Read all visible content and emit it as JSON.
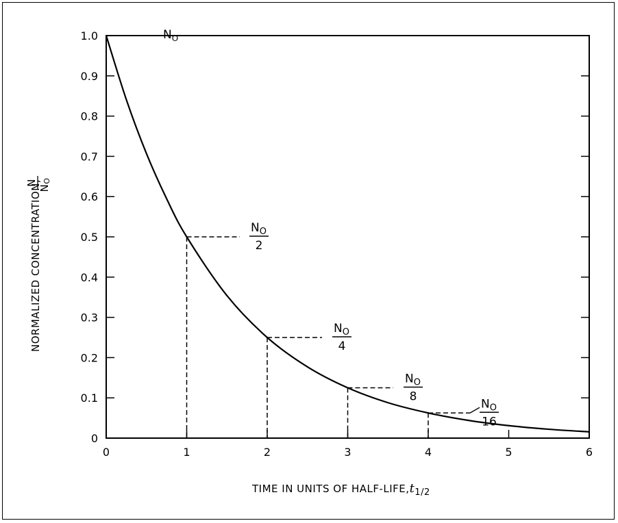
{
  "chart_data": {
    "type": "line",
    "title": "",
    "xlabel": {
      "main": "TIME IN UNITS OF HALF-LIFE,",
      "symbol": "t",
      "subscript": "1/2"
    },
    "ylabel": {
      "main": "NORMALIZED CONCENTRATION,",
      "fraction_numerator": "N",
      "fraction_denominator": "N",
      "fraction_denominator_subscript": "O"
    },
    "xlim": [
      0,
      6
    ],
    "ylim": [
      0,
      1.0
    ],
    "x_ticks": [
      0,
      1,
      2,
      3,
      4,
      5,
      6
    ],
    "x_tick_labels": [
      "0",
      "1",
      "2",
      "3",
      "4",
      "5",
      "6"
    ],
    "y_ticks": [
      0,
      0.1,
      0.2,
      0.3,
      0.4,
      0.5,
      0.6,
      0.7,
      0.8,
      0.9,
      1.0
    ],
    "y_tick_labels": [
      "0",
      "0.1",
      "0.2",
      "0.3",
      "0.4",
      "0.5",
      "0.6",
      "0.7",
      "0.8",
      "0.9",
      "1.0"
    ],
    "grid": false,
    "series": [
      {
        "x": [
          0,
          0.25,
          0.5,
          0.75,
          1,
          1.5,
          2,
          2.5,
          3,
          3.5,
          4,
          4.5,
          5,
          5.5,
          6
        ],
        "values": [
          1.0,
          0.841,
          0.707,
          0.595,
          0.5,
          0.354,
          0.25,
          0.177,
          0.125,
          0.088,
          0.0625,
          0.044,
          0.031,
          0.022,
          0.0156
        ],
        "color": "#000000"
      }
    ],
    "annotations": [
      {
        "id": "n0",
        "x": 0,
        "y": 1.0,
        "numerator": "N",
        "numerator_subscript": "O",
        "denominator": ""
      },
      {
        "id": "half",
        "x": 1,
        "y": 0.5,
        "numerator": "N",
        "numerator_subscript": "O",
        "denominator": "2"
      },
      {
        "id": "quarter",
        "x": 2,
        "y": 0.25,
        "numerator": "N",
        "numerator_subscript": "O",
        "denominator": "4"
      },
      {
        "id": "eighth",
        "x": 3,
        "y": 0.125,
        "numerator": "N",
        "numerator_subscript": "O",
        "denominator": "8"
      },
      {
        "id": "sixteenth",
        "x": 4,
        "y": 0.0625,
        "numerator": "N",
        "numerator_subscript": "O",
        "denominator": "16"
      }
    ]
  }
}
